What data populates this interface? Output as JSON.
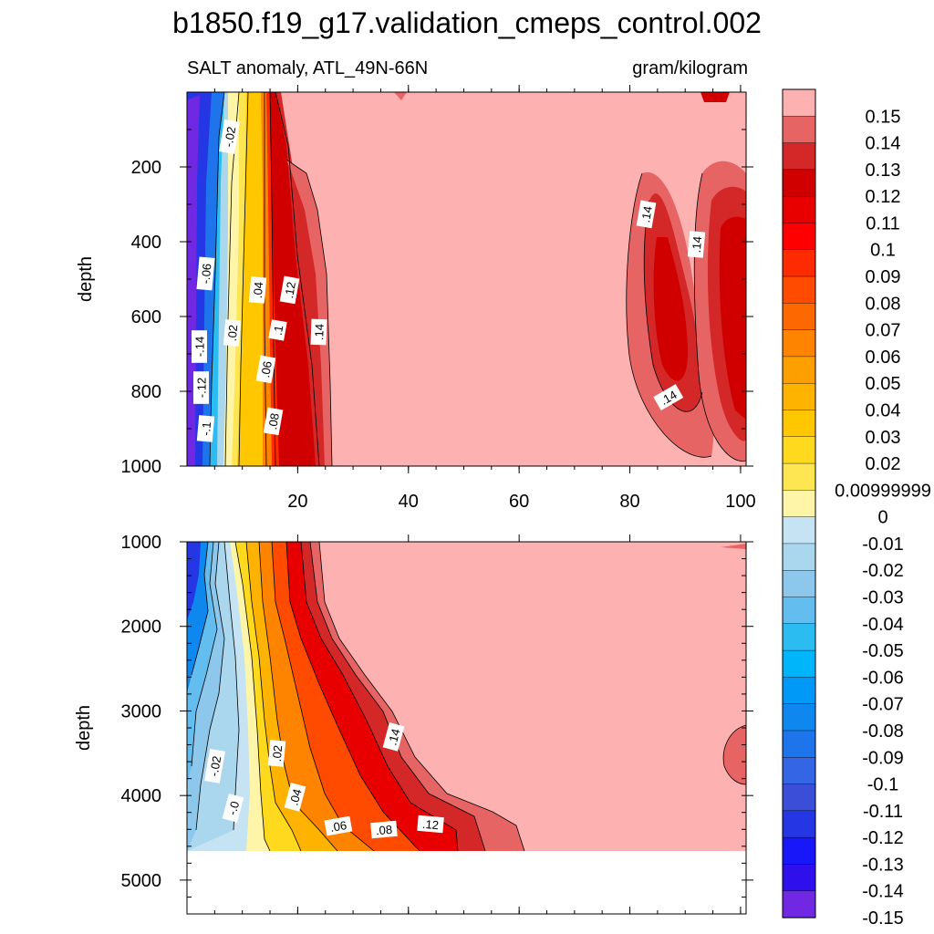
{
  "chart_data": {
    "type": "contour",
    "title": "b1850.f19_g17.validation_cmeps_control.002",
    "subtitle_left": "SALT anomaly, ATL_49N-66N",
    "subtitle_right": "gram/kilogram",
    "panels": [
      {
        "name": "upper",
        "ylabel": "depth",
        "ylim": [
          0,
          1000
        ],
        "ytick_labels": [
          "200",
          "400",
          "600",
          "800",
          "1000"
        ],
        "xlim": [
          0,
          101
        ],
        "xtick_labels": [
          "20",
          "40",
          "60",
          "80",
          "100"
        ],
        "contour_labels": [
          "-.02",
          "-.06",
          "-.14",
          "-.12",
          "-.1",
          ".04",
          ".02",
          ".12",
          ".1",
          ".06",
          ".08",
          ".14",
          ".14",
          ".14",
          ".14"
        ]
      },
      {
        "name": "lower",
        "ylabel": "depth",
        "ylim": [
          1000,
          5400
        ],
        "ytick_labels": [
          "1000",
          "2000",
          "3000",
          "4000",
          "5000"
        ],
        "bottom_of_data": 4600,
        "contour_labels": [
          "-.02",
          "-.0",
          ".02",
          ".04",
          ".06",
          ".08",
          ".12",
          ".14"
        ]
      }
    ],
    "colorbar": {
      "levels": [
        -0.15,
        -0.14,
        -0.13,
        -0.12,
        -0.11,
        -0.1,
        -0.09,
        -0.08,
        -0.07,
        -0.06,
        -0.05,
        -0.04,
        -0.03,
        -0.02,
        -0.01,
        0,
        0.01,
        0.02,
        0.03,
        0.04,
        0.05,
        0.06,
        0.07,
        0.08,
        0.09,
        0.1,
        0.11,
        0.12,
        0.13,
        0.14,
        0.15
      ],
      "labels": [
        "0.15",
        "0.14",
        "0.13",
        "0.12",
        "0.11",
        "0.1",
        "0.09",
        "0.08",
        "0.07",
        "0.06",
        "0.05",
        "0.04",
        "0.03",
        "0.02",
        "0.00999999",
        "0",
        "-0.01",
        "-0.02",
        "-0.03",
        "-0.04",
        "-0.05",
        "-0.06",
        "-0.07",
        "-0.08",
        "-0.09",
        "-0.1",
        "-0.11",
        "-0.12",
        "-0.13",
        "-0.14",
        "-0.15"
      ],
      "colors_top_to_bottom": [
        "#fdb1b1",
        "#e76464",
        "#d42828",
        "#d10000",
        "#e80000",
        "#fe0000",
        "#fe2a00",
        "#fe4b00",
        "#fe6800",
        "#fe8400",
        "#fe9f00",
        "#feb300",
        "#fec700",
        "#fed91e",
        "#fee653",
        "#fef5a8",
        "#c5e3f2",
        "#aad6ee",
        "#8dc8ec",
        "#63bdee",
        "#2bbcf1",
        "#00b5f9",
        "#0099f8",
        "#0e87ef",
        "#1e74ea",
        "#3365e4",
        "#3b4ed8",
        "#2536e5",
        "#1717f9",
        "#2f10ec",
        "#7128e2"
      ]
    }
  }
}
